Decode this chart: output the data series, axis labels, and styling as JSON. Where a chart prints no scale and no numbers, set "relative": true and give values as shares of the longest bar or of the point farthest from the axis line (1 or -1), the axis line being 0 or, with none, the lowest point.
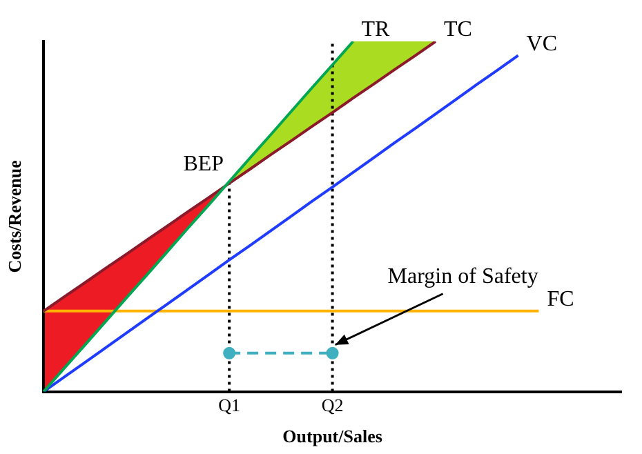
{
  "chart_data": {
    "type": "line",
    "relative": true,
    "xlabel": "Output/Sales",
    "ylabel": "Costs/Revenue",
    "categories": [
      null,
      null,
      null,
      null,
      null,
      null,
      null,
      null,
      null,
      "Q1",
      null,
      null,
      null,
      null,
      "Q2",
      null,
      null,
      null,
      null,
      null,
      null,
      null,
      null,
      null,
      null,
      null,
      null,
      null,
      null
    ],
    "series": [
      {
        "name": "TR",
        "color": "#00a651",
        "values": [
          0,
          0.067,
          0.133,
          0.2,
          0.267,
          0.333,
          0.4,
          0.467,
          0.533,
          0.6,
          0.667,
          0.733,
          0.8,
          0.867,
          0.933,
          1,
          null,
          null,
          null,
          null,
          null,
          null,
          null,
          null,
          null,
          null,
          null,
          null,
          null
        ]
      },
      {
        "name": "TC",
        "color": "#8b1a2b",
        "values": [
          0.23,
          0.271,
          0.311,
          0.352,
          0.392,
          0.433,
          0.473,
          0.514,
          0.554,
          0.595,
          0.635,
          0.676,
          0.716,
          0.757,
          0.797,
          0.838,
          0.878,
          0.919,
          0.959,
          1,
          null,
          null,
          null,
          null,
          null,
          null,
          null,
          null,
          null
        ]
      },
      {
        "name": "VC",
        "color": "#1f3cff",
        "values": [
          0,
          0.042,
          0.083,
          0.125,
          0.167,
          0.209,
          0.25,
          0.292,
          0.334,
          0.376,
          0.417,
          0.459,
          0.501,
          0.543,
          0.584,
          0.626,
          0.668,
          0.71,
          0.751,
          0.793,
          0.835,
          0.877,
          0.918,
          0.96,
          null,
          null,
          null,
          null,
          null
        ]
      },
      {
        "name": "FC",
        "color": "#ffb300",
        "values": [
          0.23,
          0.23,
          0.23,
          0.23,
          0.23,
          0.23,
          0.23,
          0.23,
          0.23,
          0.23,
          0.23,
          0.23,
          0.23,
          0.23,
          0.23,
          0.23,
          0.23,
          0.23,
          0.23,
          0.23,
          0.23,
          0.23,
          0.23,
          0.23,
          0.23,
          null,
          null,
          null,
          null
        ]
      },
      {
        "color": "#40b0c0",
        "x": [
          "Q1",
          "Q2"
        ],
        "values": [
          0.11,
          0.11
        ],
        "line_style": "dashed",
        "marker": "circle"
      },
      {
        "color": "#000000",
        "x": [
          "Q1",
          "Q1"
        ],
        "values": [
          0,
          0.6
        ],
        "line_style": "dotted"
      },
      {
        "color": "#000000",
        "x": [
          "Q2",
          "Q2"
        ],
        "values": [
          0,
          1
        ],
        "line_style": "dotted"
      }
    ],
    "annotations": [
      {
        "text": "BEP",
        "x": "Q1",
        "y": 0.6
      },
      {
        "text": "Margin of Safety",
        "x": "Q2",
        "y": 0.11
      }
    ],
    "grid": false,
    "legend": false,
    "marker": "none",
    "line_style": "solid"
  }
}
